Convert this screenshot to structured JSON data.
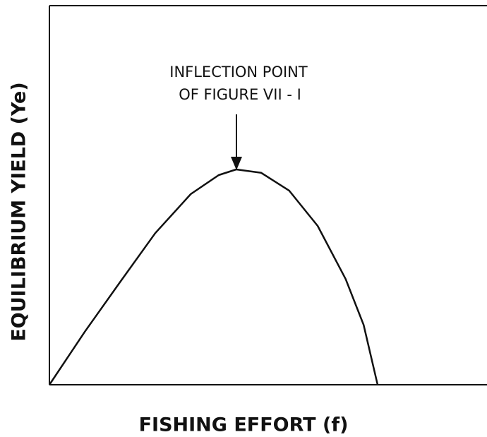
{
  "chart_data": {
    "type": "line",
    "xlabel": "FISHING EFFORT (f)",
    "ylabel": "EQUILIBRIUM YIELD (Ye)",
    "annotation": [
      "INFLECTION POINT",
      "OF FIGURE VII - I"
    ],
    "xlim": [
      0,
      100
    ],
    "ylim": [
      0,
      100
    ],
    "color": "#111111",
    "x": [
      0,
      8.1,
      16.1,
      24.2,
      32.3,
      38.7,
      42.7,
      48.4,
      54.8,
      61.3,
      67.7,
      71.8,
      75.0
    ],
    "values": [
      0,
      14.0,
      27.0,
      40.0,
      50.3,
      55.3,
      56.8,
      55.9,
      51.2,
      41.9,
      27.9,
      15.8,
      0
    ]
  }
}
